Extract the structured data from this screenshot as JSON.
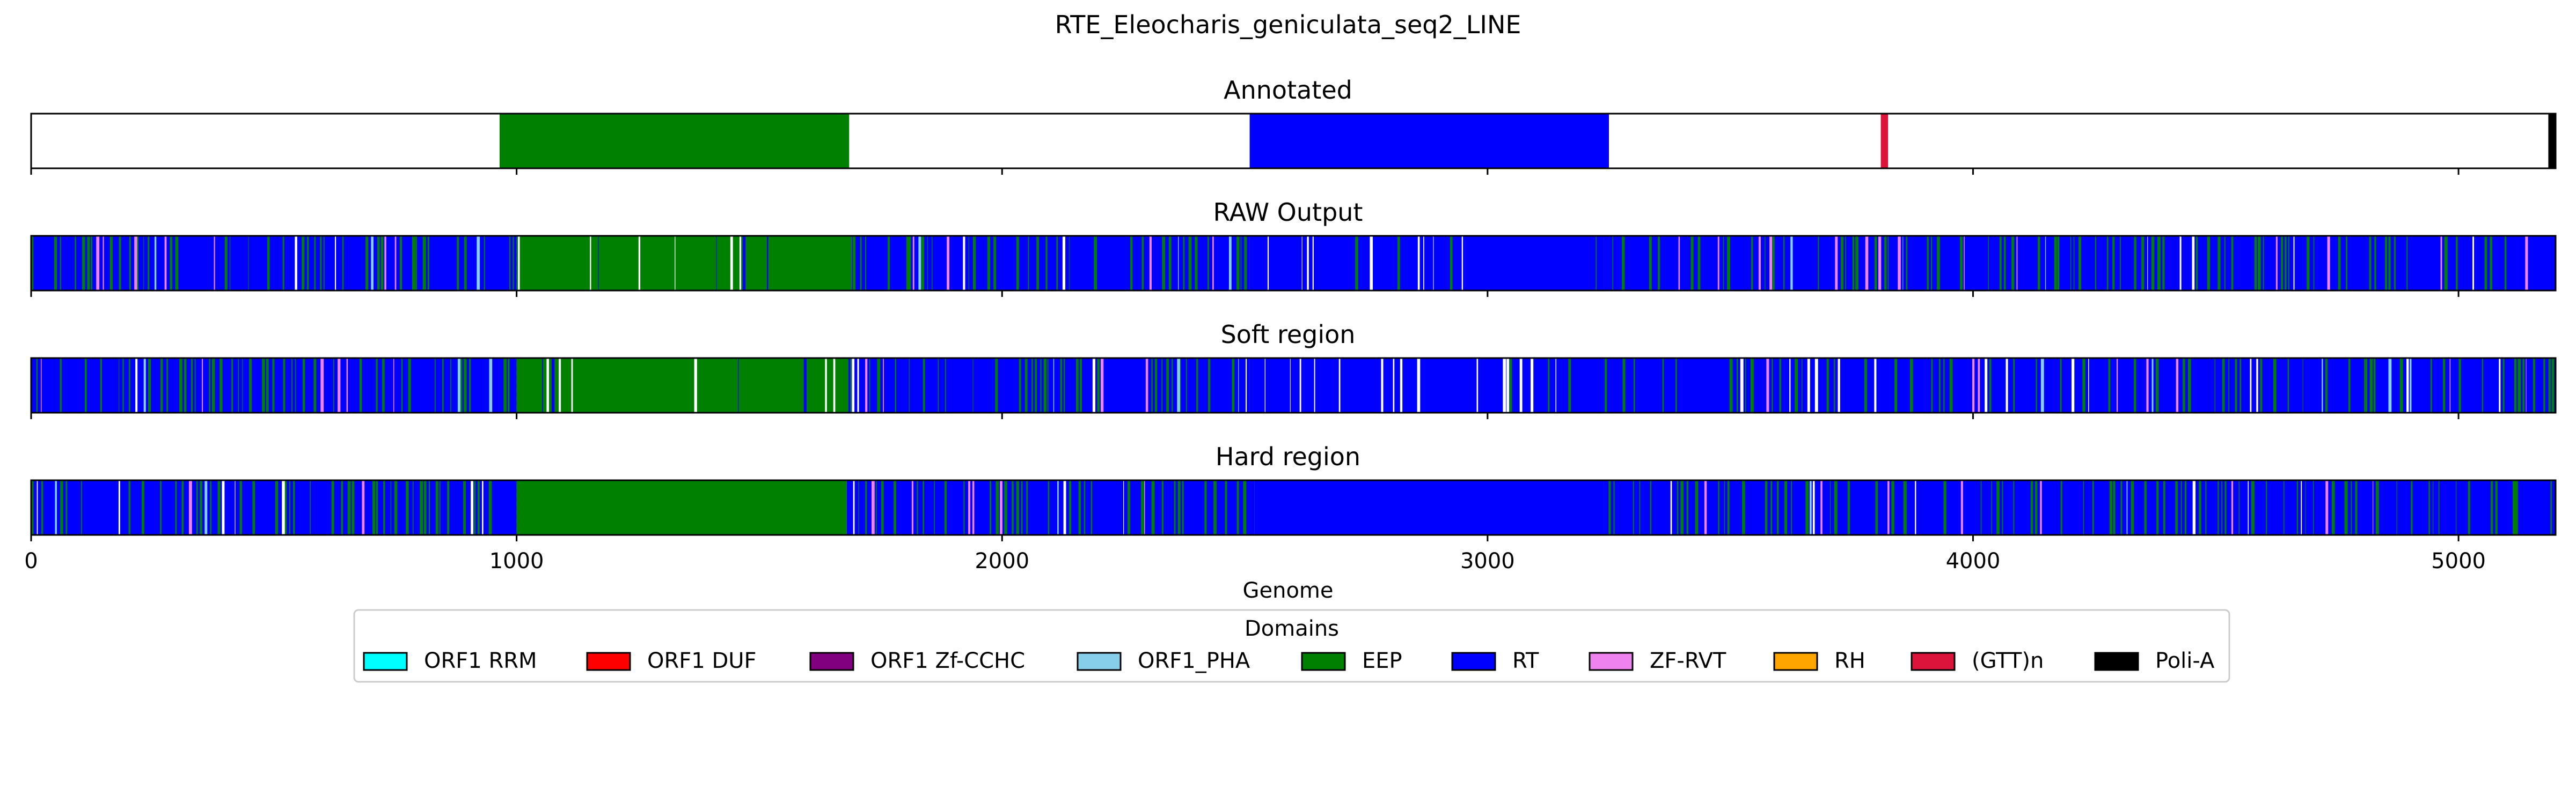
{
  "chart_data": {
    "type": "genome-track",
    "title": "RTE_Eleocharis_geniculata_seq2_LINE",
    "xlabel": "Genome",
    "xlim": [
      0,
      5200
    ],
    "xticks": [
      0,
      1000,
      2000,
      3000,
      4000,
      5000
    ],
    "tick_labels": [
      "0",
      "1000",
      "2000",
      "3000",
      "4000",
      "5000"
    ],
    "colors": {
      "ORF1 RRM": "#00ffff",
      "ORF1 DUF": "#ff0000",
      "ORF1 Zf-CCHC": "#800080",
      "ORF1_PHA": "#87ceeb",
      "EEP": "#008000",
      "RT": "#0000ff",
      "ZF-RVT": "#ee82ee",
      "RH": "#ffa500",
      "(GTT)n": "#dc143c",
      "Poli-A": "#000000"
    },
    "tracks": [
      {
        "title": "Annotated",
        "segments": [
          {
            "domain": "EEP",
            "start": 965,
            "end": 1685
          },
          {
            "domain": "RT",
            "start": 2510,
            "end": 3250
          },
          {
            "domain": "(GTT)n",
            "start": 3810,
            "end": 3825
          },
          {
            "domain": "Poli-A",
            "start": 5185,
            "end": 5200
          }
        ]
      },
      {
        "title": "RAW Output",
        "segments": [
          {
            "domain": "RT",
            "start": 0,
            "end": 1000
          },
          {
            "domain": "EEP",
            "start": 1000,
            "end": 1690
          },
          {
            "domain": "RT",
            "start": 1690,
            "end": 2510
          },
          {
            "domain": "RT",
            "start": 2510,
            "end": 3240
          },
          {
            "domain": "RT",
            "start": 3240,
            "end": 5200
          }
        ]
      },
      {
        "title": "Soft region",
        "segments": [
          {
            "domain": "RT",
            "start": 0,
            "end": 1000
          },
          {
            "domain": "EEP",
            "start": 1000,
            "end": 1690
          },
          {
            "domain": "RT",
            "start": 1690,
            "end": 2510
          },
          {
            "domain": "RT",
            "start": 2510,
            "end": 3240
          },
          {
            "domain": "RT",
            "start": 3240,
            "end": 5200
          }
        ]
      },
      {
        "title": "Hard region",
        "segments": [
          {
            "domain": "RT",
            "start": 0,
            "end": 1000
          },
          {
            "domain": "EEP",
            "start": 1000,
            "end": 1680
          },
          {
            "domain": "RT",
            "start": 1680,
            "end": 2520
          },
          {
            "domain": "RT",
            "start": 2520,
            "end": 3240
          },
          {
            "domain": "RT",
            "start": 3240,
            "end": 5200
          }
        ]
      }
    ],
    "legend": {
      "title": "Domains",
      "placement": "bottom-center",
      "entries": [
        "ORF1 RRM",
        "ORF1 DUF",
        "ORF1 Zf-CCHC",
        "ORF1_PHA",
        "EEP",
        "RT",
        "ZF-RVT",
        "RH",
        "(GTT)n",
        "Poli-A"
      ]
    }
  }
}
